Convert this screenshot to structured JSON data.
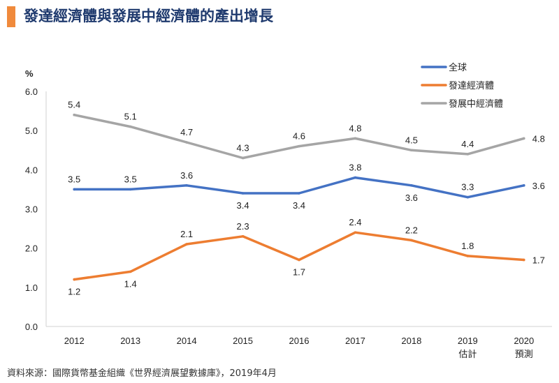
{
  "page": {
    "title": "發達經濟體與發展中經濟體的產出增長",
    "accent_color": "#f08a3c",
    "title_color": "#1f3a6e",
    "source": "資料來源：國際貨幣基金組織《世界經濟展望數據庫》，2019年4月"
  },
  "chart_data": {
    "type": "line",
    "ylabel": "%",
    "ylim": [
      0,
      6
    ],
    "yticks": [
      "0.0",
      "1.0",
      "2.0",
      "3.0",
      "4.0",
      "5.0",
      "6.0"
    ],
    "categories": [
      "2012",
      "2013",
      "2014",
      "2015",
      "2016",
      "2017",
      "2018",
      "2019",
      "2020"
    ],
    "category_sublabels": [
      "",
      "",
      "",
      "",
      "",
      "",
      "",
      "估計",
      "預測"
    ],
    "grid": false,
    "legend_position": "top-right",
    "series": [
      {
        "name": "全球",
        "color": "#4472c4",
        "values": [
          3.5,
          3.5,
          3.6,
          3.4,
          3.4,
          3.8,
          3.6,
          3.3,
          3.6
        ],
        "label_positions": [
          "above",
          "above",
          "above",
          "below",
          "below",
          "above",
          "below",
          "above",
          "right"
        ]
      },
      {
        "name": "發達經濟體",
        "color": "#ed7d31",
        "values": [
          1.2,
          1.4,
          2.1,
          2.3,
          1.7,
          2.4,
          2.2,
          1.8,
          1.7
        ],
        "label_positions": [
          "below",
          "below",
          "above",
          "above",
          "below",
          "above",
          "above",
          "above",
          "right"
        ]
      },
      {
        "name": "發展中經濟體",
        "color": "#a5a5a5",
        "values": [
          5.4,
          5.1,
          4.7,
          4.3,
          4.6,
          4.8,
          4.5,
          4.4,
          4.8
        ],
        "label_positions": [
          "above",
          "above",
          "above",
          "above",
          "above",
          "above",
          "above",
          "above",
          "right"
        ]
      }
    ]
  }
}
